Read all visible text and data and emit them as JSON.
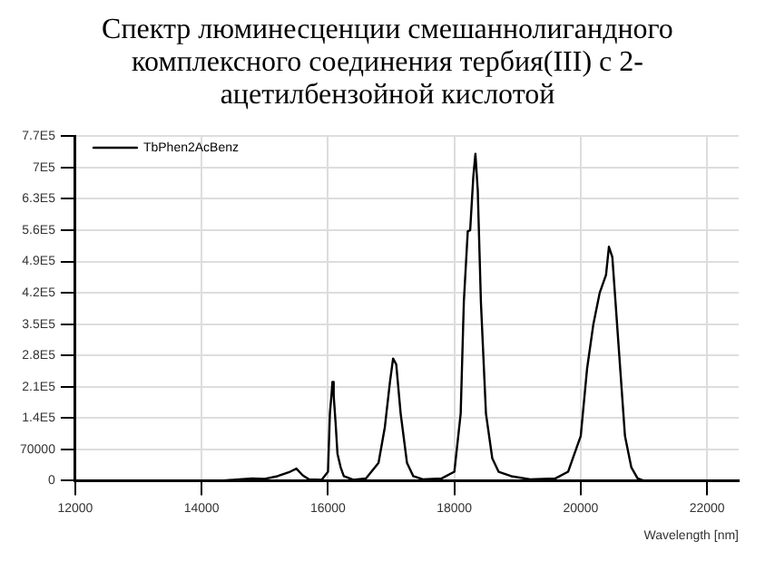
{
  "chart_data": {
    "type": "line",
    "title": "Спектр люминесценции смешаннолигандного комплексного соединения тербия(III) с 2-ацетилбензойной кислотой",
    "xlabel": "Wavelength [nm]",
    "series": [
      {
        "name": "TbPhen2AcBenz",
        "color": "#000000",
        "x": [
          14300,
          14600,
          14800,
          15000,
          15200,
          15400,
          15500,
          15600,
          15700,
          15900,
          16000,
          16030,
          16060,
          16070,
          16090,
          16120,
          16150,
          16200,
          16250,
          16400,
          16600,
          16800,
          16900,
          16980,
          17030,
          17080,
          17150,
          17250,
          17350,
          17500,
          17800,
          18000,
          18100,
          18150,
          18212,
          18250,
          18300,
          18333,
          18370,
          18420,
          18500,
          18600,
          18700,
          18900,
          19200,
          19600,
          19800,
          20000,
          20100,
          20200,
          20300,
          20400,
          20446,
          20500,
          20600,
          20700,
          20800,
          20900,
          21000
        ],
        "values": [
          0,
          3000,
          5000,
          4000,
          10000,
          20000,
          27000,
          12000,
          3000,
          2000,
          20000,
          150000,
          200000,
          221000,
          190000,
          130000,
          60000,
          30000,
          10000,
          2000,
          5000,
          40000,
          120000,
          220000,
          273000,
          260000,
          150000,
          40000,
          10000,
          3000,
          5000,
          20000,
          150000,
          400000,
          558000,
          560000,
          680000,
          731000,
          650000,
          400000,
          150000,
          50000,
          20000,
          10000,
          3000,
          5000,
          20000,
          100000,
          250000,
          350000,
          420000,
          460000,
          523000,
          500000,
          300000,
          100000,
          30000,
          5000,
          0
        ]
      }
    ],
    "xlim": [
      12000,
      22500
    ],
    "xticks": [
      12000,
      14000,
      16000,
      18000,
      20000,
      22000
    ],
    "ylim": [
      0,
      770000
    ],
    "yticks": [
      0,
      70000,
      {
        "value": 140000,
        "label": "1.4E5"
      },
      {
        "value": 210000,
        "label": "2.1E5"
      },
      {
        "value": 280000,
        "label": "2.8E5"
      },
      {
        "value": 350000,
        "label": "3.5E5"
      },
      {
        "value": 420000,
        "label": "4.2E5"
      },
      {
        "value": 490000,
        "label": "4.9E5"
      },
      {
        "value": 560000,
        "label": "5.6E5"
      },
      {
        "value": 630000,
        "label": "6.3E5"
      },
      {
        "value": 700000,
        "label": "7E5"
      },
      {
        "value": 770000,
        "label": "7.7E5"
      }
    ],
    "grid": true,
    "legend": "top left",
    "marker": "none",
    "line_style": "solid"
  }
}
